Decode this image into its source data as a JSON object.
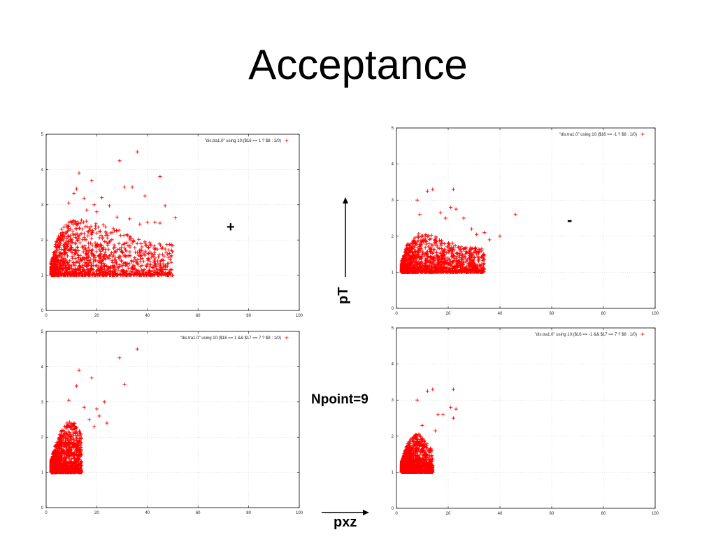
{
  "page": {
    "title": "Acceptance",
    "annotations": {
      "plus_sign": "+",
      "minus_sign": "-",
      "pt_label": "pT",
      "npoint_label": "Npoint=9",
      "pxz_label": "pxz"
    }
  },
  "chart_data": [
    {
      "type": "scatter",
      "panel": "top-left",
      "series": [
        {
          "key": "\"dis.tra1.0\" using 10:($16 == 1 ? $8 : 1/0)",
          "marker": "+",
          "color": "#ff0000"
        }
      ],
      "xlim": [
        0,
        100
      ],
      "ylim": [
        0,
        5
      ],
      "xticks": [
        0,
        20,
        40,
        60,
        80,
        100
      ],
      "yticks": [
        0,
        1,
        2,
        3,
        4,
        5
      ],
      "grid": true,
      "legend": "top-right",
      "envelope": {
        "ymin": 1.0,
        "edge": [
          [
            2,
            1.4
          ],
          [
            4,
            2.0
          ],
          [
            6,
            2.3
          ],
          [
            8,
            2.45
          ],
          [
            10,
            2.55
          ],
          [
            14,
            2.6
          ],
          [
            18,
            2.55
          ],
          [
            22,
            2.45
          ],
          [
            26,
            2.35
          ],
          [
            30,
            2.25
          ],
          [
            34,
            2.1
          ],
          [
            38,
            2.0
          ],
          [
            42,
            1.95
          ],
          [
            46,
            1.9
          ],
          [
            50,
            1.9
          ]
        ]
      },
      "outliers": [
        [
          36,
          4.5
        ],
        [
          29,
          4.25
        ],
        [
          13,
          3.9
        ],
        [
          45,
          3.8
        ],
        [
          18,
          3.68
        ],
        [
          12,
          3.45
        ],
        [
          31,
          3.5
        ],
        [
          34,
          3.5
        ],
        [
          39,
          3.25
        ],
        [
          11,
          3.32
        ],
        [
          22,
          3.2
        ],
        [
          15,
          3.18
        ],
        [
          47,
          2.97
        ],
        [
          25,
          2.97
        ],
        [
          51,
          2.63
        ],
        [
          43,
          2.5
        ],
        [
          45,
          2.48
        ],
        [
          37,
          2.45
        ],
        [
          40,
          2.5
        ],
        [
          19,
          3.0
        ],
        [
          9,
          3.05
        ],
        [
          20,
          2.8
        ],
        [
          28,
          2.65
        ],
        [
          33,
          2.6
        ],
        [
          16,
          2.85
        ]
      ]
    },
    {
      "type": "scatter",
      "panel": "top-right",
      "series": [
        {
          "key": "\"dis.tra1.0\" using 10:($16 == -1 ? $8 : 1/0)",
          "marker": "+",
          "color": "#ff0000"
        }
      ],
      "xlim": [
        0,
        100
      ],
      "ylim": [
        0,
        5
      ],
      "xticks": [
        0,
        20,
        40,
        60,
        80,
        100
      ],
      "yticks": [
        0,
        1,
        2,
        3,
        4,
        5
      ],
      "grid": true,
      "legend": "top-right",
      "envelope": {
        "ymin": 1.0,
        "edge": [
          [
            2,
            1.3
          ],
          [
            4,
            1.75
          ],
          [
            6,
            1.95
          ],
          [
            8,
            2.05
          ],
          [
            10,
            2.1
          ],
          [
            14,
            2.05
          ],
          [
            18,
            1.9
          ],
          [
            22,
            1.8
          ],
          [
            26,
            1.7
          ],
          [
            30,
            1.7
          ],
          [
            34,
            1.7
          ]
        ]
      },
      "outliers": [
        [
          14,
          3.3
        ],
        [
          22,
          3.3
        ],
        [
          8,
          3.0
        ],
        [
          12,
          3.25
        ],
        [
          21,
          2.8
        ],
        [
          23,
          2.75
        ],
        [
          9,
          2.6
        ],
        [
          46,
          2.6
        ],
        [
          40,
          2.0
        ],
        [
          36,
          1.9
        ],
        [
          26,
          2.5
        ],
        [
          29,
          2.2
        ],
        [
          34,
          2.1
        ],
        [
          31,
          2.05
        ],
        [
          17,
          2.65
        ],
        [
          19,
          2.5
        ]
      ]
    },
    {
      "type": "scatter",
      "panel": "bottom-left",
      "series": [
        {
          "key": "\"dis.tra1.0\" using 10:($16 == 1 && $17 == 7 ? $8 : 1/0)",
          "marker": "+",
          "color": "#ff0000"
        }
      ],
      "xlim": [
        0,
        100
      ],
      "ylim": [
        0,
        5
      ],
      "xticks": [
        0,
        20,
        40,
        60,
        80,
        100
      ],
      "yticks": [
        0,
        1,
        2,
        3,
        4,
        5
      ],
      "grid": true,
      "legend": "top-right",
      "envelope": {
        "ymin": 1.0,
        "edge": [
          [
            2,
            1.35
          ],
          [
            4,
            1.85
          ],
          [
            6,
            2.2
          ],
          [
            8,
            2.4
          ],
          [
            10,
            2.5
          ],
          [
            12,
            2.35
          ],
          [
            14,
            2.1
          ]
        ]
      },
      "outliers": [
        [
          36,
          4.5
        ],
        [
          29,
          4.25
        ],
        [
          13,
          3.9
        ],
        [
          18,
          3.68
        ],
        [
          12,
          3.45
        ],
        [
          31,
          3.5
        ],
        [
          23,
          3.0
        ],
        [
          9,
          3.05
        ],
        [
          15,
          2.85
        ],
        [
          20,
          2.8
        ],
        [
          21,
          2.6
        ],
        [
          24,
          2.4
        ],
        [
          17,
          2.5
        ],
        [
          19,
          2.3
        ]
      ]
    },
    {
      "type": "scatter",
      "panel": "bottom-right",
      "series": [
        {
          "key": "\"dis.tra1.0\" using 10:($16 == -1 && $17 == 7 ? $8 : 1/0)",
          "marker": "+",
          "color": "#ff0000"
        }
      ],
      "xlim": [
        0,
        100
      ],
      "ylim": [
        0,
        5
      ],
      "xticks": [
        0,
        20,
        40,
        60,
        80,
        100
      ],
      "yticks": [
        0,
        1,
        2,
        3,
        4,
        5
      ],
      "grid": true,
      "legend": "top-right",
      "envelope": {
        "ymin": 1.0,
        "edge": [
          [
            2,
            1.3
          ],
          [
            4,
            1.75
          ],
          [
            6,
            2.0
          ],
          [
            8,
            2.1
          ],
          [
            10,
            2.0
          ],
          [
            12,
            1.8
          ],
          [
            14,
            1.6
          ]
        ]
      },
      "outliers": [
        [
          14,
          3.3
        ],
        [
          22,
          3.3
        ],
        [
          8,
          3.0
        ],
        [
          12,
          3.25
        ],
        [
          21,
          2.8
        ],
        [
          23,
          2.75
        ],
        [
          16,
          2.6
        ],
        [
          18,
          2.6
        ],
        [
          22,
          2.5
        ],
        [
          10,
          2.3
        ],
        [
          15,
          2.15
        ]
      ]
    }
  ]
}
